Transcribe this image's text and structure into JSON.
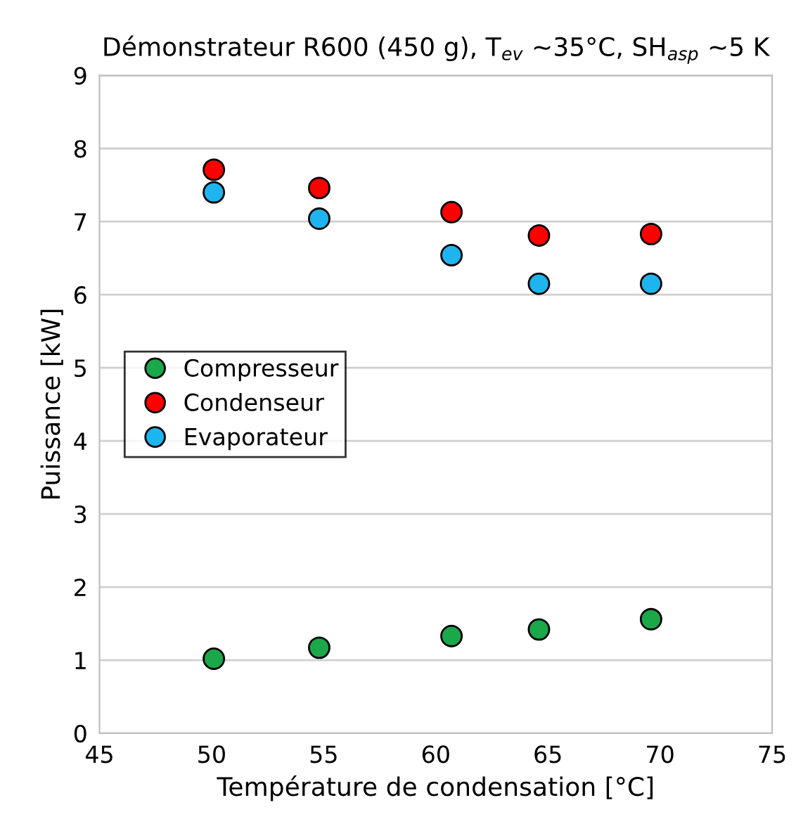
{
  "chart_data": {
    "type": "scatter",
    "title": "Démonstrateur R600 (450 g), T$_{ev}$ ~35°C, SH$_{asp}$ ~5 K",
    "xlabel": "Température de condensation [°C]",
    "ylabel": "Puissance [kW]",
    "series": [
      {
        "name": "Compresseur",
        "color": "#1aa84b",
        "x": [
          50.1,
          54.8,
          60.7,
          64.6,
          69.6
        ],
        "values": [
          1.02,
          1.17,
          1.33,
          1.42,
          1.56
        ]
      },
      {
        "name": "Condenseur",
        "color": "#ff0000",
        "x": [
          50.1,
          54.8,
          60.7,
          64.6,
          69.6
        ],
        "values": [
          7.71,
          7.46,
          7.13,
          6.81,
          6.83
        ]
      },
      {
        "name": "Evaporateur",
        "color": "#1eb4f0",
        "x": [
          50.1,
          54.8,
          60.7,
          64.6,
          69.6
        ],
        "values": [
          7.4,
          7.04,
          6.54,
          6.15,
          6.15
        ]
      }
    ],
    "xlim": [
      45,
      75
    ],
    "xticks": [
      45,
      50,
      55,
      60,
      65,
      70,
      75
    ],
    "ylim": [
      0,
      9
    ],
    "yticks": [
      0,
      1,
      2,
      3,
      4,
      5,
      6,
      7,
      8,
      9
    ],
    "grid": "y",
    "legend": "center left",
    "marker": "circle"
  }
}
